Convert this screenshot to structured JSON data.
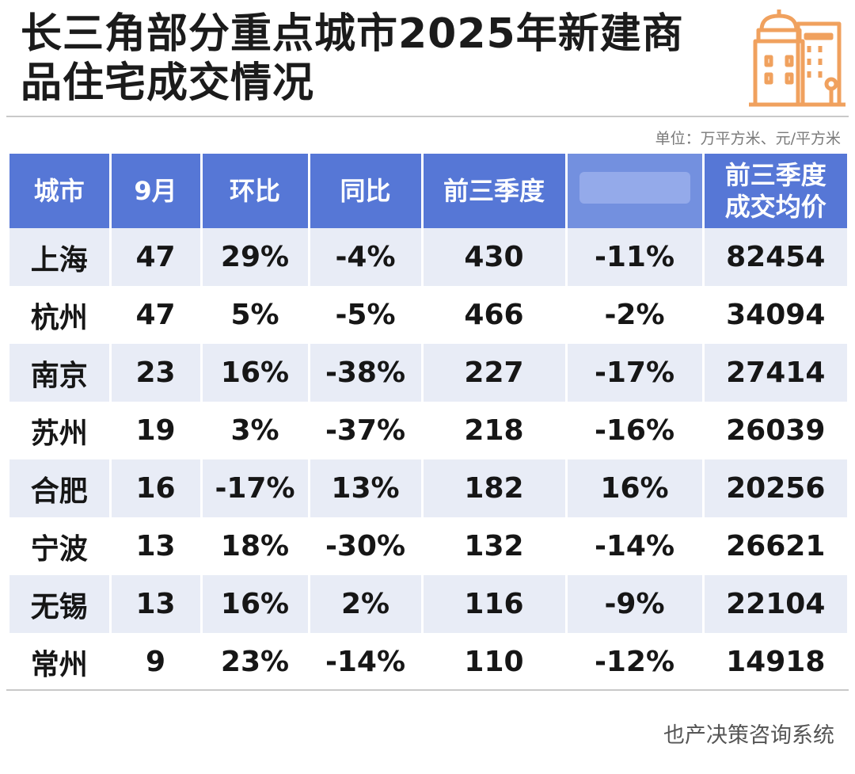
{
  "title": "长三角部分重点城市2025年新建商品住宅成交情况",
  "unit": "单位：万平方米、元/平方米",
  "headers": [
    "城市",
    "9月",
    "环比",
    "同比",
    "前三季度",
    "",
    "前三季度成交均价"
  ],
  "rows": [
    [
      "上海",
      "47",
      "29%",
      "-4%",
      "430",
      "-11%",
      "82454"
    ],
    [
      "杭州",
      "47",
      "5%",
      "-5%",
      "466",
      "-2%",
      "34094"
    ],
    [
      "南京",
      "23",
      "16%",
      "-38%",
      "227",
      "-17%",
      "27414"
    ],
    [
      "苏州",
      "19",
      "3%",
      "-37%",
      "218",
      "-16%",
      "26039"
    ],
    [
      "合肥",
      "16",
      "-17%",
      "13%",
      "182",
      "16%",
      "20256"
    ],
    [
      "宁波",
      "13",
      "18%",
      "-30%",
      "132",
      "-14%",
      "26621"
    ],
    [
      "无锡",
      "13",
      "16%",
      "2%",
      "116",
      "-9%",
      "22104"
    ],
    [
      "常州",
      "9",
      "23%",
      "-14%",
      "110",
      "-12%",
      "14918"
    ]
  ],
  "footer": "也产决策咨询系统",
  "colors": {
    "header_bg": "#5677d6",
    "stripe_bg": "#e8ecf6",
    "icon_orange": "#f0a15e"
  },
  "icons": [
    "building-icon"
  ]
}
